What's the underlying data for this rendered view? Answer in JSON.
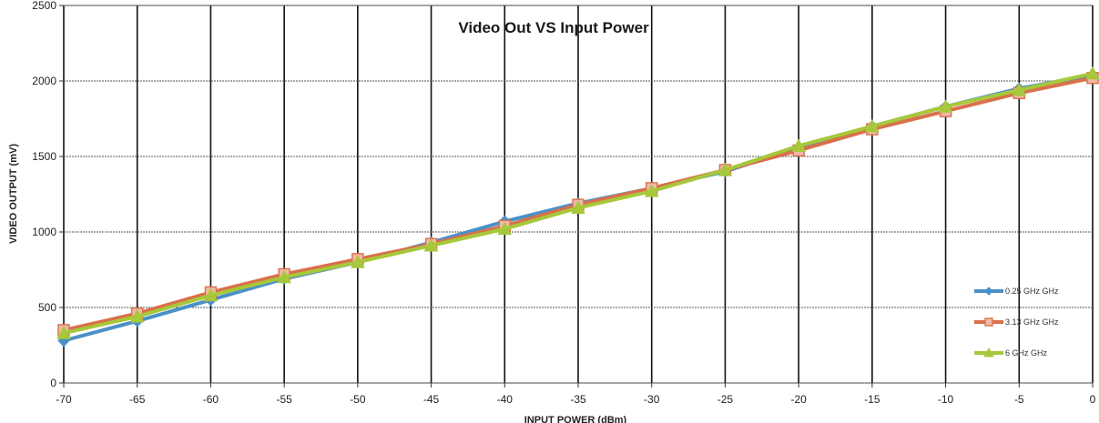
{
  "chart_data": {
    "type": "line",
    "title": "Video Out VS Input Power",
    "xlabel": "INPUT POWER (dBm)",
    "ylabel": "VIDEO OUTPUT (mV)",
    "xlim": [
      -70,
      0
    ],
    "ylim": [
      0,
      2500
    ],
    "x": [
      -70,
      -65,
      -60,
      -55,
      -50,
      -45,
      -40,
      -35,
      -30,
      -25,
      -20,
      -15,
      -10,
      -5,
      0
    ],
    "xticks": [
      "-70",
      "-65",
      "-60",
      "-55",
      "-50",
      "-45",
      "-40",
      "-35",
      "-30",
      "-25",
      "-20",
      "-15",
      "-10",
      "-5",
      "0"
    ],
    "yticks": [
      "0",
      "500",
      "1000",
      "1500",
      "2000",
      "2500"
    ],
    "grid": true,
    "legend_position": "bottom-right",
    "series": [
      {
        "name": "0.25 GHz GHz",
        "color": "#4a90c8",
        "marker": "diamond",
        "values": [
          280,
          410,
          550,
          690,
          800,
          930,
          1070,
          1190,
          1290,
          1400,
          1560,
          1700,
          1830,
          1950,
          2040
        ]
      },
      {
        "name": "3.13 GHz GHz",
        "color": "#d9704a",
        "marker": "square",
        "values": [
          350,
          460,
          600,
          720,
          820,
          920,
          1040,
          1180,
          1290,
          1410,
          1540,
          1680,
          1800,
          1920,
          2020
        ]
      },
      {
        "name": "6 GHz GHz",
        "color": "#a6c83a",
        "marker": "triangle",
        "values": [
          330,
          440,
          580,
          700,
          800,
          910,
          1020,
          1160,
          1270,
          1410,
          1570,
          1700,
          1830,
          1940,
          2050
        ]
      }
    ]
  }
}
